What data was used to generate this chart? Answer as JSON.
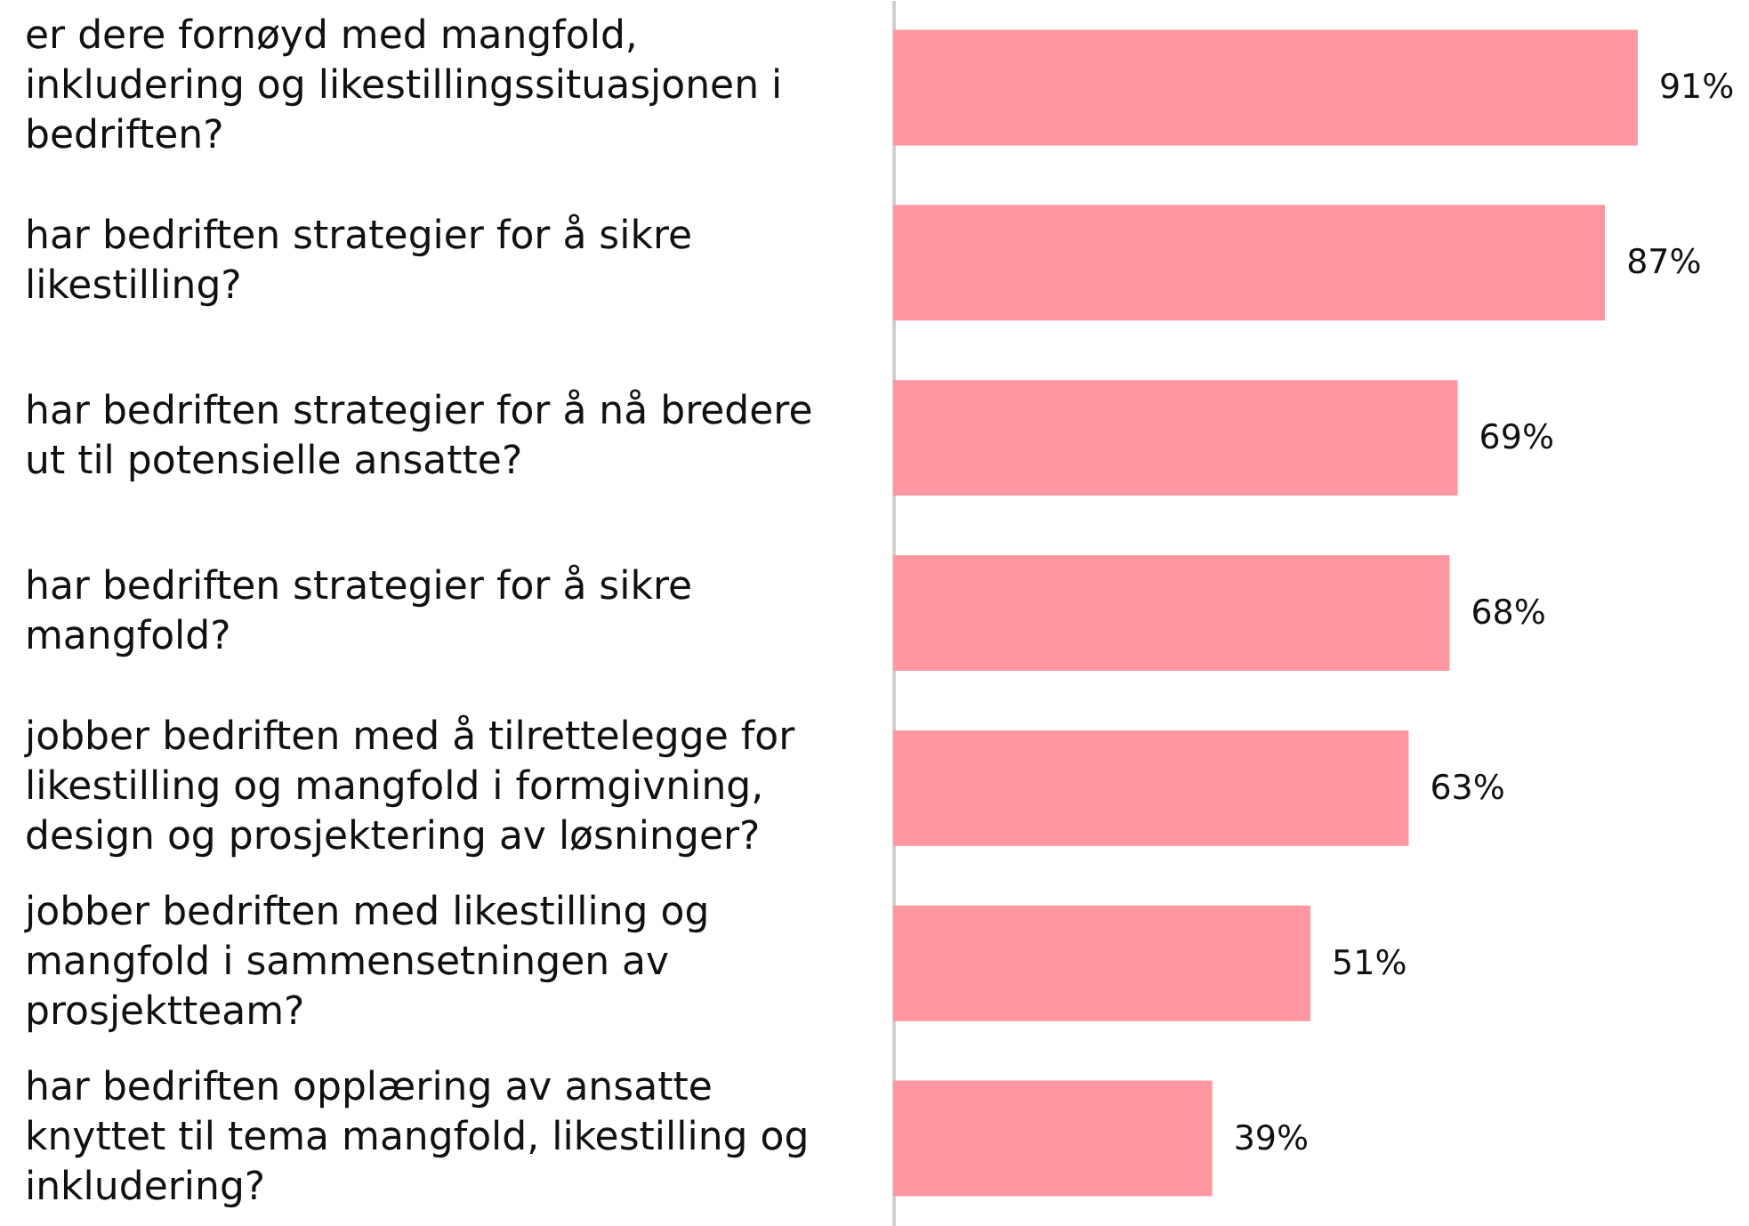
{
  "chart_data": {
    "type": "bar",
    "orientation": "horizontal",
    "categories": [
      "er dere fornøyd med mangfold, inkludering og likestillingssituasjonen i bedriften?",
      "har bedriften strategier for å sikre likestilling?",
      "har bedriften strategier for å nå bredere ut til potensielle ansatte?",
      "har bedriften strategier for å sikre mangfold?",
      "jobber bedriften med å tilrettelegge for likestilling og mangfold i formgivning, design og prosjektering av løsninger?",
      "jobber bedriften med likestilling og mangfold i sammensetningen av prosjektteam?",
      "har bedriften opplæring av ansatte knyttet til tema mangfold, likestilling og inkludering?"
    ],
    "values": [
      91,
      87,
      69,
      68,
      63,
      51,
      39
    ],
    "value_labels": [
      "91%",
      "87%",
      "69%",
      "68%",
      "63%",
      "51%",
      "39%"
    ],
    "color": "#ff97a0",
    "grid": false
  }
}
